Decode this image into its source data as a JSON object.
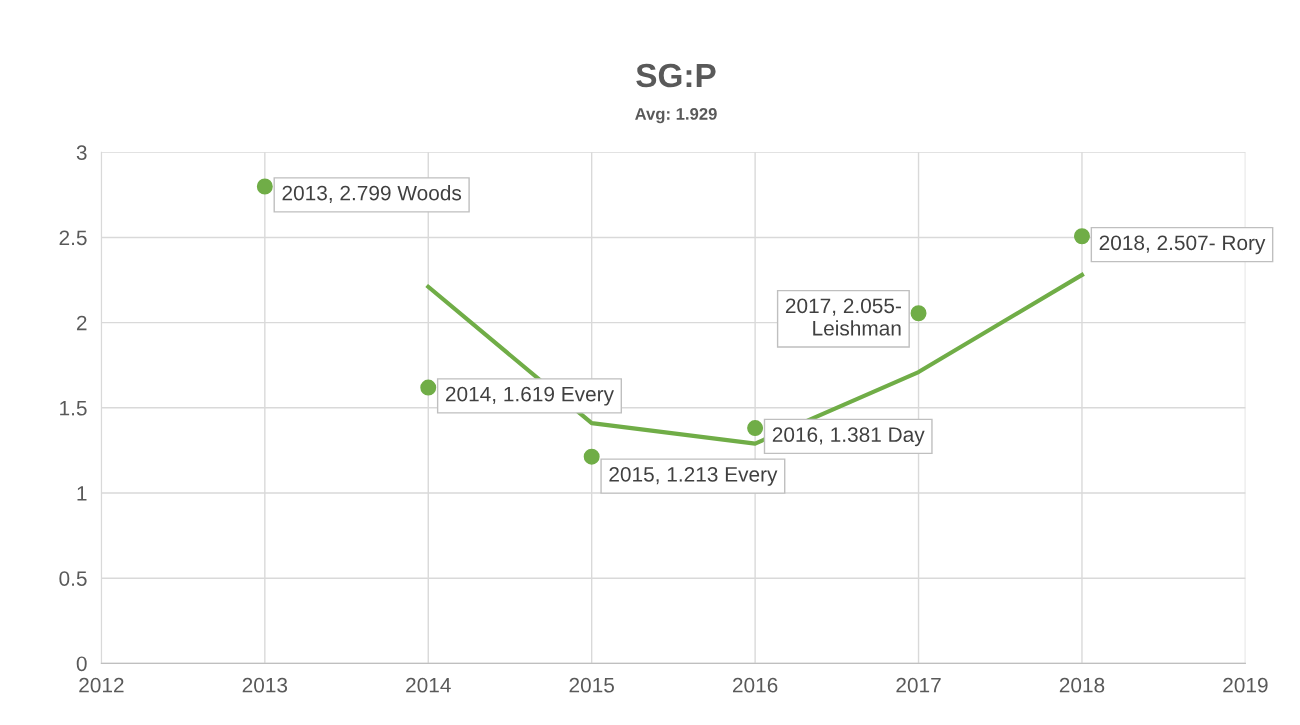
{
  "chart_data": {
    "type": "scatter",
    "title": "SG:P",
    "subtitle": "Avg: 1.929",
    "x": [
      2013,
      2014,
      2015,
      2016,
      2017,
      2018
    ],
    "series": [
      {
        "type": "scatter",
        "color": "#70ad47",
        "marker": "circle",
        "values": [
          2.799,
          1.619,
          1.213,
          1.381,
          2.055,
          2.507
        ],
        "value_labels": [
          "2013, 2.799 Woods",
          "2014, 1.619 Every",
          "2015, 1.213 Every",
          "2016, 1.381 Day",
          "2017, 2.055-\nLeishman",
          "2018, 2.507- Rory"
        ]
      },
      {
        "type": "line",
        "color": "#70ad47",
        "x": [
          2014,
          2015,
          2016,
          2017,
          2018
        ],
        "values": [
          2.21,
          1.41,
          1.29,
          1.71,
          2.28
        ]
      }
    ],
    "xlim": [
      2012,
      2019
    ],
    "xticks": [
      2012,
      2013,
      2014,
      2015,
      2016,
      2017,
      2018,
      2019
    ],
    "ylim": [
      0,
      3
    ],
    "yticks": [
      0,
      0.5,
      1,
      1.5,
      2,
      2.5,
      3
    ],
    "grid": true,
    "legend": false
  }
}
